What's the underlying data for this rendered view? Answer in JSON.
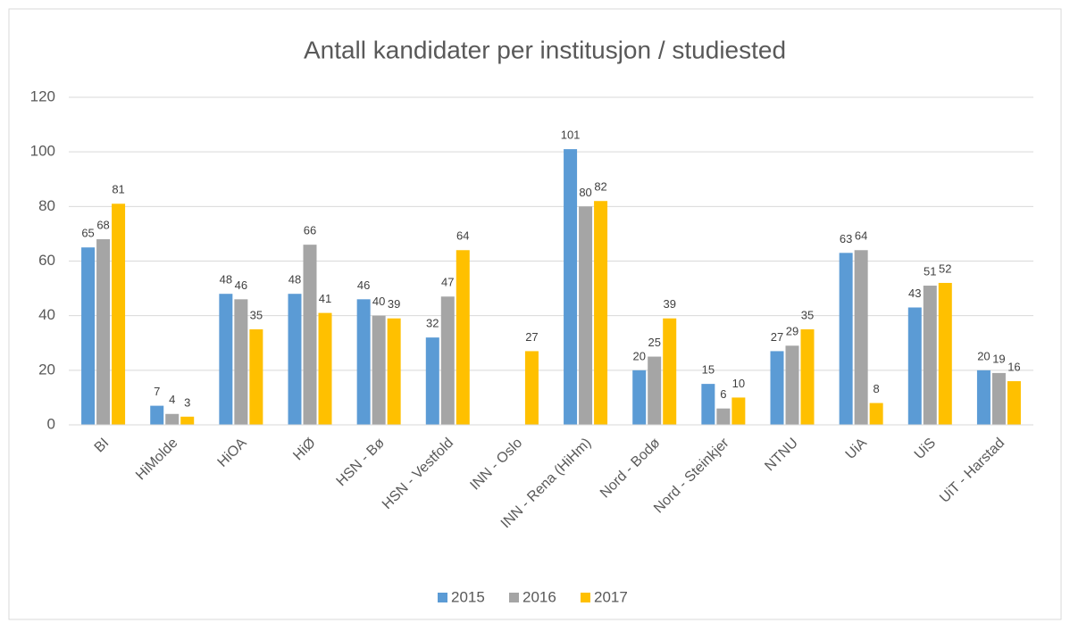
{
  "chart_data": {
    "type": "bar",
    "title": "Antall kandidater per institusjon / studiested",
    "categories": [
      "BI",
      "HiMolde",
      "HiOA",
      "HiØ",
      "HSN - Bø",
      "HSN - Vestfold",
      "INN - Oslo",
      "INN - Rena (HiHm)",
      "Nord - Bodø",
      "Nord - Steinkjer",
      "NTNU",
      "UiA",
      "UiS",
      "UiT - Harstad"
    ],
    "series": [
      {
        "name": "2015",
        "color": "#5b9bd5",
        "values": [
          65,
          7,
          48,
          48,
          46,
          32,
          null,
          101,
          20,
          15,
          27,
          63,
          43,
          20
        ]
      },
      {
        "name": "2016",
        "color": "#a5a5a5",
        "values": [
          68,
          4,
          46,
          66,
          40,
          47,
          null,
          80,
          25,
          6,
          29,
          64,
          51,
          19
        ]
      },
      {
        "name": "2017",
        "color": "#ffc000",
        "values": [
          81,
          3,
          35,
          41,
          39,
          64,
          27,
          82,
          39,
          10,
          35,
          8,
          52,
          16
        ]
      }
    ],
    "ylim": [
      0,
      120
    ],
    "yticks": [
      0,
      20,
      40,
      60,
      80,
      100,
      120
    ],
    "grid": true,
    "legend": "bottom"
  }
}
